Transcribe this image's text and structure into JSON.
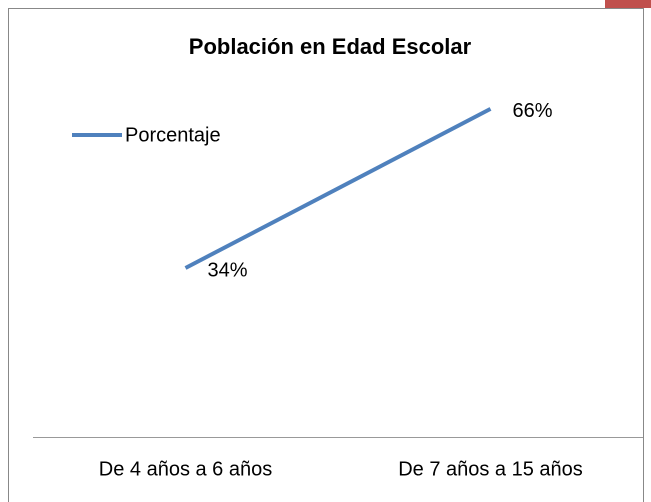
{
  "chart_data": {
    "type": "line",
    "title": "Población en Edad Escolar",
    "categories": [
      "De 4 años a 6 años",
      "De 7 años a 15 años"
    ],
    "series": [
      {
        "name": "Porcentaje",
        "color": "#4f81bd",
        "values": [
          34,
          66
        ],
        "value_labels": [
          "34%",
          "66%"
        ]
      }
    ],
    "ylim": [
      0,
      70
    ],
    "legend": "left"
  }
}
